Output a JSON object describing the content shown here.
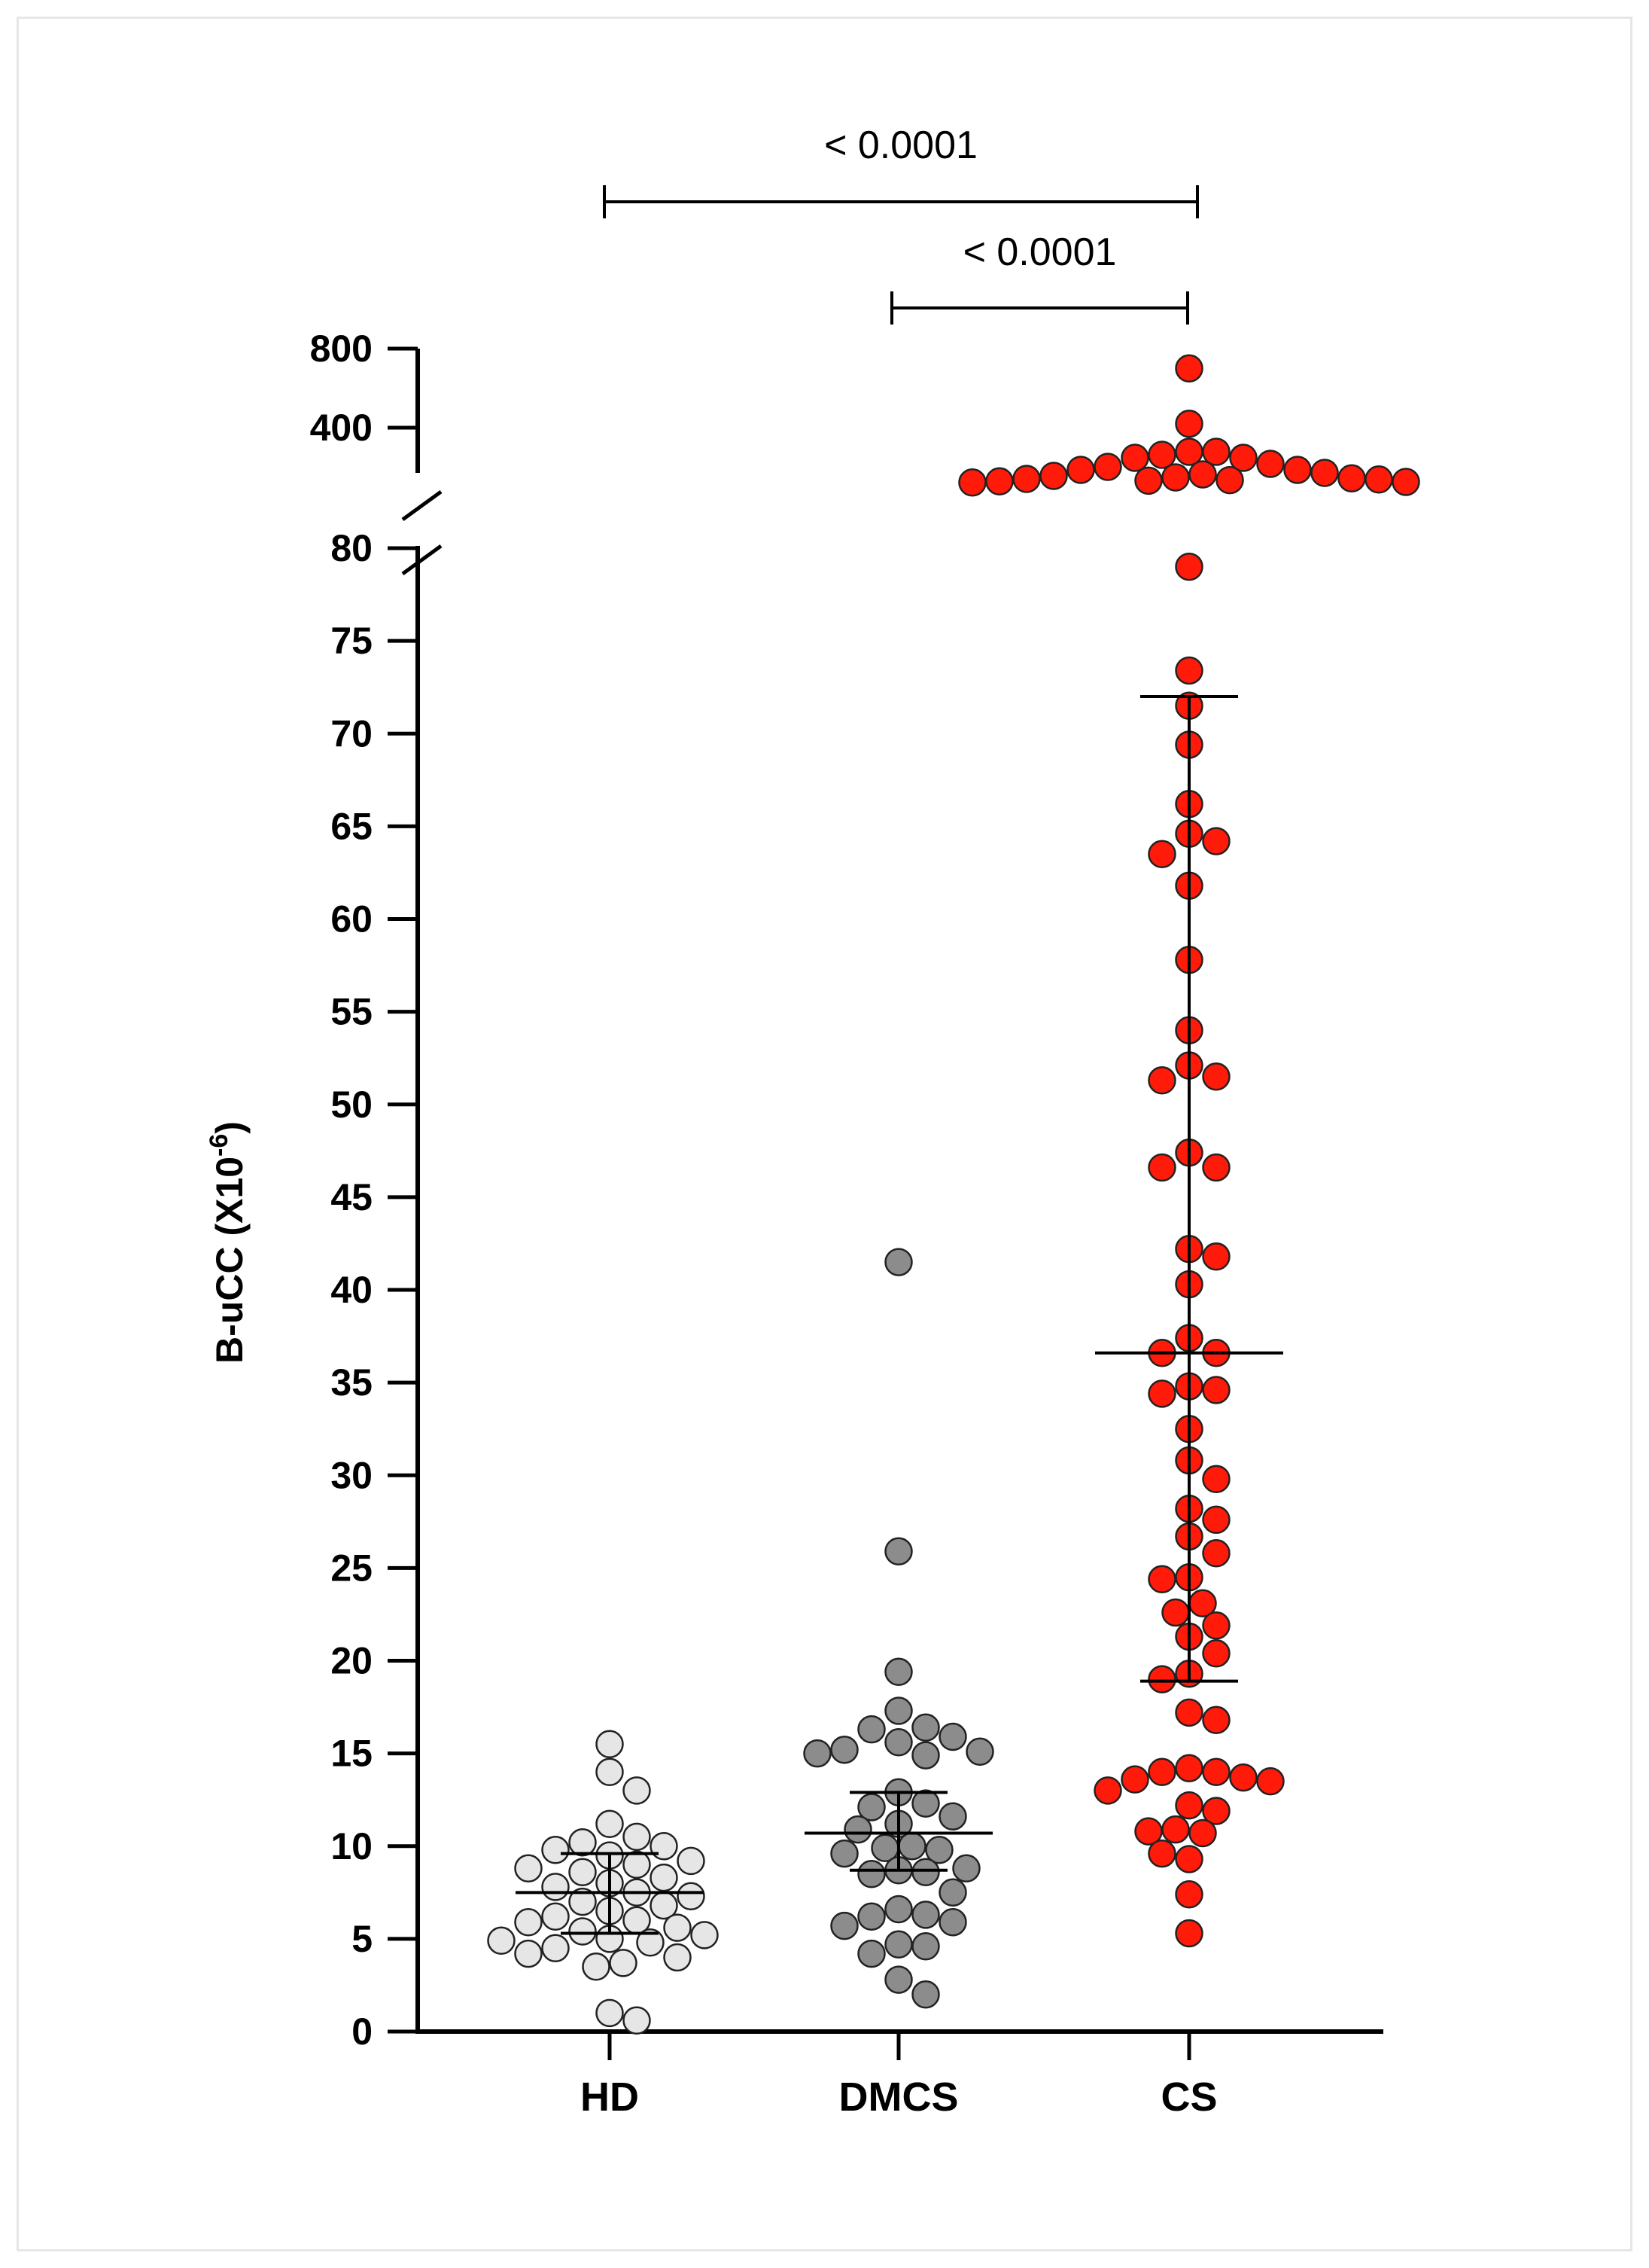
{
  "chart_data": {
    "type": "scatter",
    "subtype": "dot-plot with median and interquartile range",
    "ylabel": "B-uCC (X10",
    "ylabel_sup": "-6",
    "ylabel_close": ")",
    "categories": [
      "HD",
      "DMCS",
      "CS"
    ],
    "y_axis": {
      "lower_segment": {
        "range": [
          0,
          80
        ],
        "ticks": [
          "0",
          "5",
          "10",
          "15",
          "20",
          "25",
          "30",
          "35",
          "40",
          "45",
          "50",
          "55",
          "60",
          "65",
          "70",
          "75",
          "80"
        ]
      },
      "upper_segment": {
        "range": [
          400,
          800
        ],
        "ticks": [
          "400",
          "800"
        ]
      },
      "axis_break": true
    },
    "series": [
      {
        "category": "HD",
        "color": "#e6e6e6",
        "median": 7.5,
        "q1": 5.3,
        "q3": 9.6,
        "values": [
          15.5,
          14.0,
          13.0,
          11.2,
          10.5,
          10.2,
          10.0,
          9.8,
          9.5,
          9.2,
          9.0,
          8.8,
          8.6,
          8.3,
          8.0,
          7.8,
          7.5,
          7.3,
          7.0,
          6.8,
          6.5,
          6.2,
          6.0,
          5.9,
          5.6,
          5.4,
          5.2,
          5.0,
          4.9,
          4.8,
          4.5,
          4.2,
          4.0,
          3.7,
          3.5,
          1.0,
          0.6
        ]
      },
      {
        "category": "DMCS",
        "color": "#8c8c8c",
        "median": 10.7,
        "q1": 8.7,
        "q3": 12.9,
        "values": [
          41.5,
          25.9,
          19.4,
          17.3,
          16.4,
          16.3,
          15.9,
          15.6,
          15.2,
          15.1,
          15.0,
          14.9,
          12.9,
          12.3,
          12.1,
          11.6,
          11.2,
          10.9,
          10.0,
          9.9,
          9.8,
          9.6,
          8.8,
          8.7,
          8.6,
          8.5,
          7.5,
          6.6,
          6.3,
          6.2,
          5.9,
          5.7,
          4.7,
          4.6,
          4.2,
          2.8,
          2.0
        ]
      },
      {
        "category": "CS",
        "color": "#ff1a0a",
        "median": 36.6,
        "q1": 18.9,
        "q3": 72.0,
        "upper_segment_values": [
          700,
          420,
          320,
          320,
          310,
          300,
          300,
          280,
          270,
          260,
          260,
          250,
          245,
          240,
          235,
          232,
          230,
          228,
          226,
          224,
          222,
          220,
          218
        ],
        "values": [
          79.0,
          73.4,
          71.5,
          69.4,
          66.2,
          64.6,
          64.2,
          63.5,
          61.8,
          57.8,
          54.0,
          52.1,
          51.5,
          51.3,
          47.4,
          46.6,
          46.6,
          42.2,
          41.8,
          40.3,
          37.4,
          36.6,
          36.6,
          34.8,
          34.6,
          34.4,
          32.5,
          30.8,
          29.8,
          28.2,
          27.6,
          26.7,
          25.8,
          24.5,
          24.4,
          23.1,
          22.6,
          21.9,
          21.3,
          20.4,
          19.3,
          19.0,
          17.2,
          16.8,
          14.2,
          14.0,
          14.0,
          13.7,
          13.6,
          13.5,
          13.0,
          12.2,
          11.9,
          10.9,
          10.8,
          10.7,
          9.6,
          9.3,
          7.4,
          5.3
        ]
      }
    ],
    "significance": [
      {
        "from": "HD",
        "to": "CS",
        "label": "< 0.0001"
      },
      {
        "from": "DMCS",
        "to": "CS",
        "label": "< 0.0001"
      }
    ]
  }
}
